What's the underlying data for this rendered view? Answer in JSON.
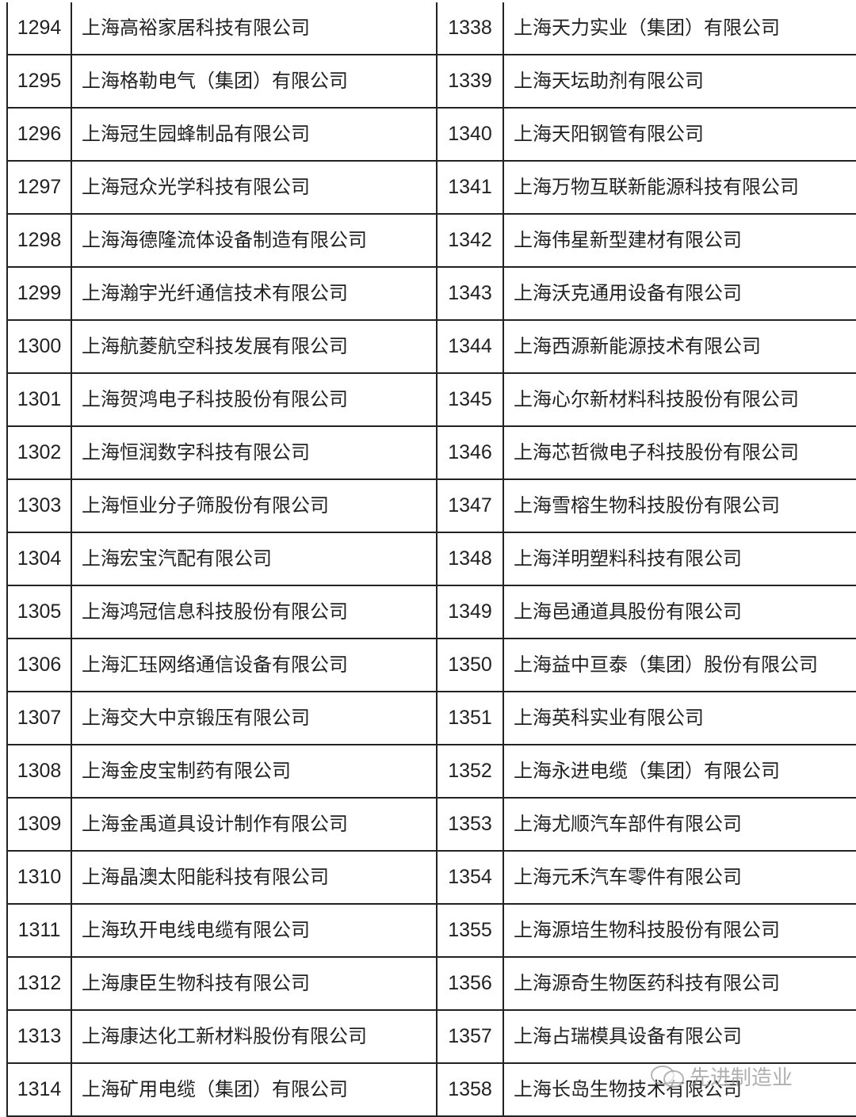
{
  "rows": [
    {
      "left_no": "1294",
      "left_name": "上海高裕家居科技有限公司",
      "right_no": "1338",
      "right_name": "上海天力实业（集团）有限公司"
    },
    {
      "left_no": "1295",
      "left_name": "上海格勒电气（集团）有限公司",
      "right_no": "1339",
      "right_name": "上海天坛助剂有限公司"
    },
    {
      "left_no": "1296",
      "left_name": "上海冠生园蜂制品有限公司",
      "right_no": "1340",
      "right_name": "上海天阳钢管有限公司"
    },
    {
      "left_no": "1297",
      "left_name": "上海冠众光学科技有限公司",
      "right_no": "1341",
      "right_name": "上海万物互联新能源科技有限公司"
    },
    {
      "left_no": "1298",
      "left_name": "上海海德隆流体设备制造有限公司",
      "right_no": "1342",
      "right_name": "上海伟星新型建材有限公司"
    },
    {
      "left_no": "1299",
      "left_name": "上海瀚宇光纤通信技术有限公司",
      "right_no": "1343",
      "right_name": "上海沃克通用设备有限公司"
    },
    {
      "left_no": "1300",
      "left_name": "上海航菱航空科技发展有限公司",
      "right_no": "1344",
      "right_name": "上海西源新能源技术有限公司"
    },
    {
      "left_no": "1301",
      "left_name": "上海贺鸿电子科技股份有限公司",
      "right_no": "1345",
      "right_name": "上海心尔新材料科技股份有限公司"
    },
    {
      "left_no": "1302",
      "left_name": "上海恒润数字科技有限公司",
      "right_no": "1346",
      "right_name": "上海芯哲微电子科技股份有限公司"
    },
    {
      "left_no": "1303",
      "left_name": "上海恒业分子筛股份有限公司",
      "right_no": "1347",
      "right_name": "上海雪榕生物科技股份有限公司"
    },
    {
      "left_no": "1304",
      "left_name": "上海宏宝汽配有限公司",
      "right_no": "1348",
      "right_name": "上海洋明塑料科技有限公司"
    },
    {
      "left_no": "1305",
      "left_name": "上海鸿冠信息科技股份有限公司",
      "right_no": "1349",
      "right_name": "上海邑通道具股份有限公司"
    },
    {
      "left_no": "1306",
      "left_name": "上海汇珏网络通信设备有限公司",
      "right_no": "1350",
      "right_name": "上海益中亘泰（集团）股份有限公司"
    },
    {
      "left_no": "1307",
      "left_name": "上海交大中京锻压有限公司",
      "right_no": "1351",
      "right_name": "上海英科实业有限公司"
    },
    {
      "left_no": "1308",
      "left_name": "上海金皮宝制药有限公司",
      "right_no": "1352",
      "right_name": "上海永进电缆（集团）有限公司"
    },
    {
      "left_no": "1309",
      "left_name": "上海金禹道具设计制作有限公司",
      "right_no": "1353",
      "right_name": "上海尤顺汽车部件有限公司"
    },
    {
      "left_no": "1310",
      "left_name": "上海晶澳太阳能科技有限公司",
      "right_no": "1354",
      "right_name": "上海元禾汽车零件有限公司"
    },
    {
      "left_no": "1311",
      "left_name": "上海玖开电线电缆有限公司",
      "right_no": "1355",
      "right_name": "上海源培生物科技股份有限公司"
    },
    {
      "left_no": "1312",
      "left_name": "上海康臣生物科技有限公司",
      "right_no": "1356",
      "right_name": "上海源奇生物医药科技有限公司"
    },
    {
      "left_no": "1313",
      "left_name": "上海康达化工新材料股份有限公司",
      "right_no": "1357",
      "right_name": "上海占瑞模具设备有限公司"
    },
    {
      "left_no": "1314",
      "left_name": "上海矿用电缆（集团）有限公司",
      "right_no": "1358",
      "right_name": "上海长岛生物技术有限公司"
    }
  ],
  "watermark": {
    "text": "先进制造业",
    "icon": "wechat-icon"
  }
}
